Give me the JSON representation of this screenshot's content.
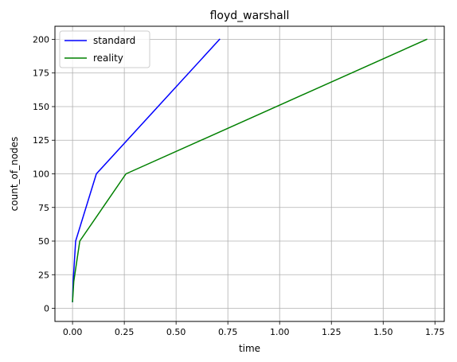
{
  "chart_data": {
    "type": "line",
    "title": "floyd_warshall",
    "xlabel": "time",
    "ylabel": "count_of_nodes",
    "xlim": [
      -0.085,
      1.795
    ],
    "ylim": [
      -9.75,
      209.75
    ],
    "x_ticks": [
      0.0,
      0.25,
      0.5,
      0.75,
      1.0,
      1.25,
      1.5,
      1.75
    ],
    "x_tick_labels": [
      "0.00",
      "0.25",
      "0.50",
      "0.75",
      "1.00",
      "1.25",
      "1.50",
      "1.75"
    ],
    "y_ticks": [
      0,
      25,
      50,
      75,
      100,
      125,
      150,
      175,
      200
    ],
    "y_tick_labels": [
      "0",
      "25",
      "50",
      "75",
      "100",
      "125",
      "150",
      "175",
      "200"
    ],
    "grid": true,
    "legend_position": "top-left",
    "series": [
      {
        "name": "standard",
        "color": "#0000ff",
        "points": [
          [
            0.0,
            5
          ],
          [
            0.001,
            10
          ],
          [
            0.003,
            20
          ],
          [
            0.015,
            50
          ],
          [
            0.115,
            100
          ],
          [
            0.71,
            200
          ]
        ]
      },
      {
        "name": "reality",
        "color": "#008000",
        "points": [
          [
            0.0,
            5
          ],
          [
            0.002,
            10
          ],
          [
            0.006,
            20
          ],
          [
            0.035,
            50
          ],
          [
            0.258,
            100
          ],
          [
            1.71,
            200
          ]
        ]
      }
    ]
  }
}
